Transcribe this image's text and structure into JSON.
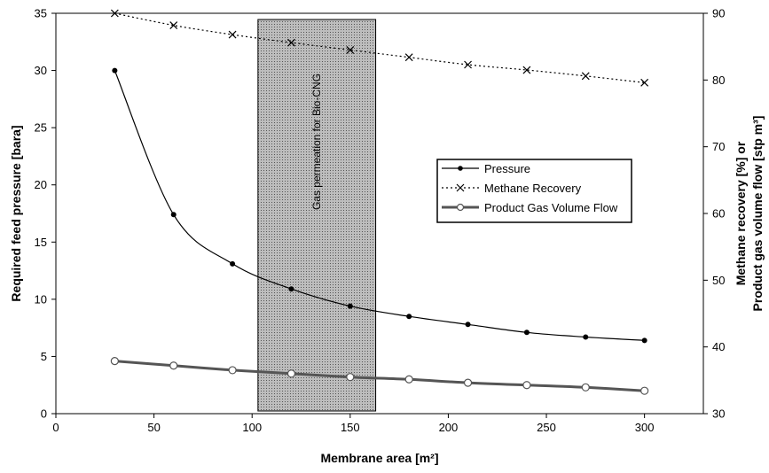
{
  "chart_data": {
    "type": "line",
    "xlabel": "Membrane area [m²]",
    "ylabel_left": "Required feed pressure [bara]",
    "ylabel_right_line1": "Methane recovery [%] or",
    "ylabel_right_line2": "Product gas volume flow [stp m³]",
    "xlim": [
      0,
      330
    ],
    "ylim_left": [
      0,
      35
    ],
    "ylim_right": [
      30,
      90
    ],
    "x_ticks": [
      "0",
      "50",
      "100",
      "150",
      "200",
      "250",
      "300"
    ],
    "y_ticks_left": [
      "0",
      "5",
      "10",
      "15",
      "20",
      "25",
      "30",
      "35"
    ],
    "y_ticks_right": [
      "30",
      "40",
      "50",
      "60",
      "70",
      "80",
      "90"
    ],
    "grid": false,
    "legend_position": "center-right",
    "shaded_region": {
      "x_start": 103,
      "x_end": 163,
      "label": "Gas permeation for Bio-CNG"
    },
    "x": [
      30,
      60,
      90,
      120,
      150,
      180,
      210,
      240,
      270,
      300
    ],
    "series": [
      {
        "name": "Pressure",
        "axis": "left",
        "marker": "filled-circle",
        "line": "solid",
        "values": [
          30.0,
          17.4,
          13.1,
          10.9,
          9.4,
          8.5,
          7.8,
          7.1,
          6.7,
          6.4
        ],
        "color": "#000000"
      },
      {
        "name": "Methane Recovery",
        "axis": "right",
        "marker": "x",
        "line": "dotted",
        "values": [
          90.0,
          88.2,
          86.8,
          85.6,
          84.5,
          83.4,
          82.3,
          81.5,
          80.6,
          79.6
        ],
        "color": "#000000"
      },
      {
        "name": "Product Gas Volume Flow",
        "axis": "left",
        "marker": "open-circle",
        "line": "solid-thick",
        "values": [
          4.6,
          4.2,
          3.8,
          3.5,
          3.2,
          3.0,
          2.7,
          2.5,
          2.3,
          2.0
        ],
        "color": "#555555"
      }
    ]
  }
}
